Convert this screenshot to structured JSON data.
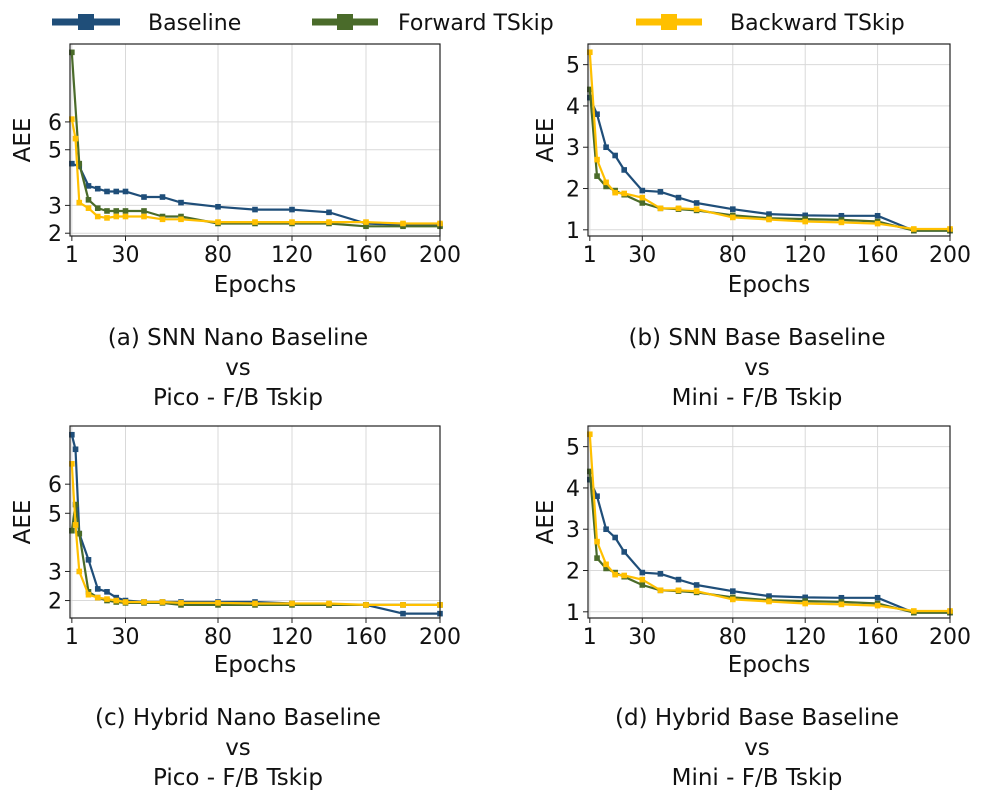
{
  "legend": {
    "position": "top-center",
    "items": [
      {
        "label": "Baseline",
        "color": "#1f4e79"
      },
      {
        "label": "Forward TSkip",
        "color": "#4a6b2a"
      },
      {
        "label": "Backward TSkip",
        "color": "#ffc000"
      }
    ]
  },
  "chart_data": [
    {
      "type": "line",
      "ylabel": "AEE",
      "xlabel": "Epochs",
      "caption": [
        "(a) SNN Nano Baseline",
        "vs",
        "Pico - F/B Tskip"
      ],
      "xlim": [
        0,
        200
      ],
      "ylim": [
        1.9,
        8.8
      ],
      "xticks": [
        1,
        30,
        80,
        120,
        160,
        200
      ],
      "yticks": [
        2,
        3,
        5,
        6
      ],
      "grid": true,
      "series": [
        {
          "name": "Baseline",
          "color": "#1f4e79",
          "x": [
            1,
            5,
            10,
            15,
            20,
            25,
            30,
            40,
            50,
            60,
            80,
            100,
            120,
            140,
            160,
            180,
            200
          ],
          "y": [
            4.5,
            4.4,
            3.7,
            3.6,
            3.5,
            3.5,
            3.5,
            3.3,
            3.3,
            3.1,
            2.95,
            2.85,
            2.85,
            2.75,
            2.35,
            2.3,
            2.3
          ]
        },
        {
          "name": "Forward TSkip",
          "color": "#4a6b2a",
          "x": [
            1,
            5,
            10,
            15,
            20,
            25,
            30,
            40,
            50,
            60,
            80,
            100,
            120,
            140,
            160,
            180,
            200
          ],
          "y": [
            8.5,
            4.5,
            3.2,
            2.9,
            2.8,
            2.8,
            2.8,
            2.8,
            2.6,
            2.6,
            2.35,
            2.35,
            2.35,
            2.35,
            2.25,
            2.25,
            2.25
          ]
        },
        {
          "name": "Backward TSkip",
          "color": "#ffc000",
          "x": [
            1,
            3,
            5,
            10,
            15,
            20,
            25,
            30,
            40,
            50,
            60,
            80,
            100,
            120,
            140,
            160,
            180,
            200
          ],
          "y": [
            6.1,
            5.4,
            3.1,
            2.9,
            2.6,
            2.55,
            2.6,
            2.6,
            2.6,
            2.5,
            2.5,
            2.4,
            2.4,
            2.4,
            2.4,
            2.4,
            2.35,
            2.35
          ]
        }
      ]
    },
    {
      "type": "line",
      "ylabel": "AEE",
      "xlabel": "Epochs",
      "caption": [
        "(b) SNN Base Baseline",
        "vs",
        "Mini - F/B Tskip"
      ],
      "xlim": [
        0,
        200
      ],
      "ylim": [
        0.85,
        5.5
      ],
      "xticks": [
        1,
        30,
        80,
        120,
        160,
        200
      ],
      "yticks": [
        1,
        2,
        3,
        4,
        5
      ],
      "grid": true,
      "series": [
        {
          "name": "Baseline",
          "color": "#1f4e79",
          "x": [
            1,
            5,
            10,
            15,
            20,
            30,
            40,
            50,
            60,
            80,
            100,
            120,
            140,
            160,
            180,
            200
          ],
          "y": [
            4.2,
            3.8,
            3.0,
            2.8,
            2.45,
            1.95,
            1.92,
            1.78,
            1.65,
            1.5,
            1.38,
            1.35,
            1.34,
            1.34,
            0.98,
            0.98
          ]
        },
        {
          "name": "Forward TSkip",
          "color": "#4a6b2a",
          "x": [
            1,
            5,
            10,
            15,
            20,
            30,
            40,
            50,
            60,
            80,
            100,
            120,
            140,
            160,
            180,
            200
          ],
          "y": [
            4.4,
            2.3,
            2.05,
            1.95,
            1.85,
            1.65,
            1.52,
            1.5,
            1.47,
            1.35,
            1.28,
            1.26,
            1.24,
            1.2,
            0.98,
            0.98
          ]
        },
        {
          "name": "Backward TSkip",
          "color": "#ffc000",
          "x": [
            1,
            5,
            10,
            15,
            20,
            30,
            40,
            50,
            60,
            80,
            100,
            120,
            140,
            160,
            180,
            200
          ],
          "y": [
            5.3,
            2.7,
            2.15,
            1.9,
            1.88,
            1.78,
            1.52,
            1.52,
            1.5,
            1.3,
            1.25,
            1.2,
            1.18,
            1.15,
            1.02,
            1.02
          ]
        }
      ]
    },
    {
      "type": "line",
      "ylabel": "AEE",
      "xlabel": "Epochs",
      "caption": [
        "(c) Hybrid Nano Baseline",
        "vs",
        "Pico - F/B Tskip"
      ],
      "xlim": [
        0,
        200
      ],
      "ylim": [
        1.4,
        8.0
      ],
      "xticks": [
        1,
        30,
        80,
        120,
        160,
        200
      ],
      "yticks": [
        2,
        3,
        5,
        6
      ],
      "grid": true,
      "series": [
        {
          "name": "Baseline",
          "color": "#1f4e79",
          "x": [
            1,
            3,
            5,
            10,
            15,
            20,
            25,
            30,
            40,
            50,
            60,
            80,
            100,
            120,
            140,
            160,
            180,
            200
          ],
          "y": [
            7.7,
            7.2,
            4.3,
            3.4,
            2.4,
            2.3,
            2.1,
            2.0,
            1.95,
            1.95,
            1.95,
            1.95,
            1.95,
            1.9,
            1.85,
            1.85,
            1.55,
            1.55
          ]
        },
        {
          "name": "Forward TSkip",
          "color": "#4a6b2a",
          "x": [
            1,
            3,
            5,
            10,
            15,
            20,
            25,
            30,
            40,
            50,
            60,
            80,
            100,
            120,
            140,
            160,
            180,
            200
          ],
          "y": [
            4.4,
            5.3,
            4.3,
            2.3,
            2.1,
            2.0,
            1.95,
            1.92,
            1.92,
            1.92,
            1.85,
            1.85,
            1.85,
            1.85,
            1.85,
            1.85,
            1.85,
            1.85
          ]
        },
        {
          "name": "Backward TSkip",
          "color": "#ffc000",
          "x": [
            1,
            3,
            5,
            10,
            15,
            20,
            25,
            30,
            40,
            50,
            60,
            80,
            100,
            120,
            140,
            160,
            180,
            200
          ],
          "y": [
            6.7,
            4.6,
            3.0,
            2.2,
            2.1,
            2.05,
            2.0,
            1.95,
            1.95,
            1.95,
            1.92,
            1.92,
            1.9,
            1.9,
            1.9,
            1.85,
            1.85,
            1.85
          ]
        }
      ]
    },
    {
      "type": "line",
      "ylabel": "AEE",
      "xlabel": "Epochs",
      "caption": [
        "(d) Hybrid Base Baseline",
        "vs",
        "Mini - F/B Tskip"
      ],
      "xlim": [
        0,
        200
      ],
      "ylim": [
        0.85,
        5.5
      ],
      "xticks": [
        1,
        30,
        80,
        120,
        160,
        200
      ],
      "yticks": [
        1,
        2,
        3,
        4,
        5
      ],
      "grid": true,
      "series": [
        {
          "name": "Baseline",
          "color": "#1f4e79",
          "x": [
            1,
            5,
            10,
            15,
            20,
            30,
            40,
            50,
            60,
            80,
            100,
            120,
            140,
            160,
            180,
            200
          ],
          "y": [
            4.2,
            3.8,
            3.0,
            2.8,
            2.45,
            1.95,
            1.92,
            1.78,
            1.65,
            1.5,
            1.38,
            1.35,
            1.34,
            1.34,
            0.98,
            0.98
          ]
        },
        {
          "name": "Forward TSkip",
          "color": "#4a6b2a",
          "x": [
            1,
            5,
            10,
            15,
            20,
            30,
            40,
            50,
            60,
            80,
            100,
            120,
            140,
            160,
            180,
            200
          ],
          "y": [
            4.4,
            2.3,
            2.05,
            1.95,
            1.85,
            1.65,
            1.52,
            1.5,
            1.47,
            1.35,
            1.28,
            1.26,
            1.24,
            1.2,
            0.98,
            0.98
          ]
        },
        {
          "name": "Backward TSkip",
          "color": "#ffc000",
          "x": [
            1,
            5,
            10,
            15,
            20,
            30,
            40,
            50,
            60,
            80,
            100,
            120,
            140,
            160,
            180,
            200
          ],
          "y": [
            5.3,
            2.7,
            2.15,
            1.9,
            1.88,
            1.78,
            1.52,
            1.52,
            1.5,
            1.3,
            1.25,
            1.2,
            1.18,
            1.15,
            1.02,
            1.02
          ]
        }
      ]
    }
  ]
}
